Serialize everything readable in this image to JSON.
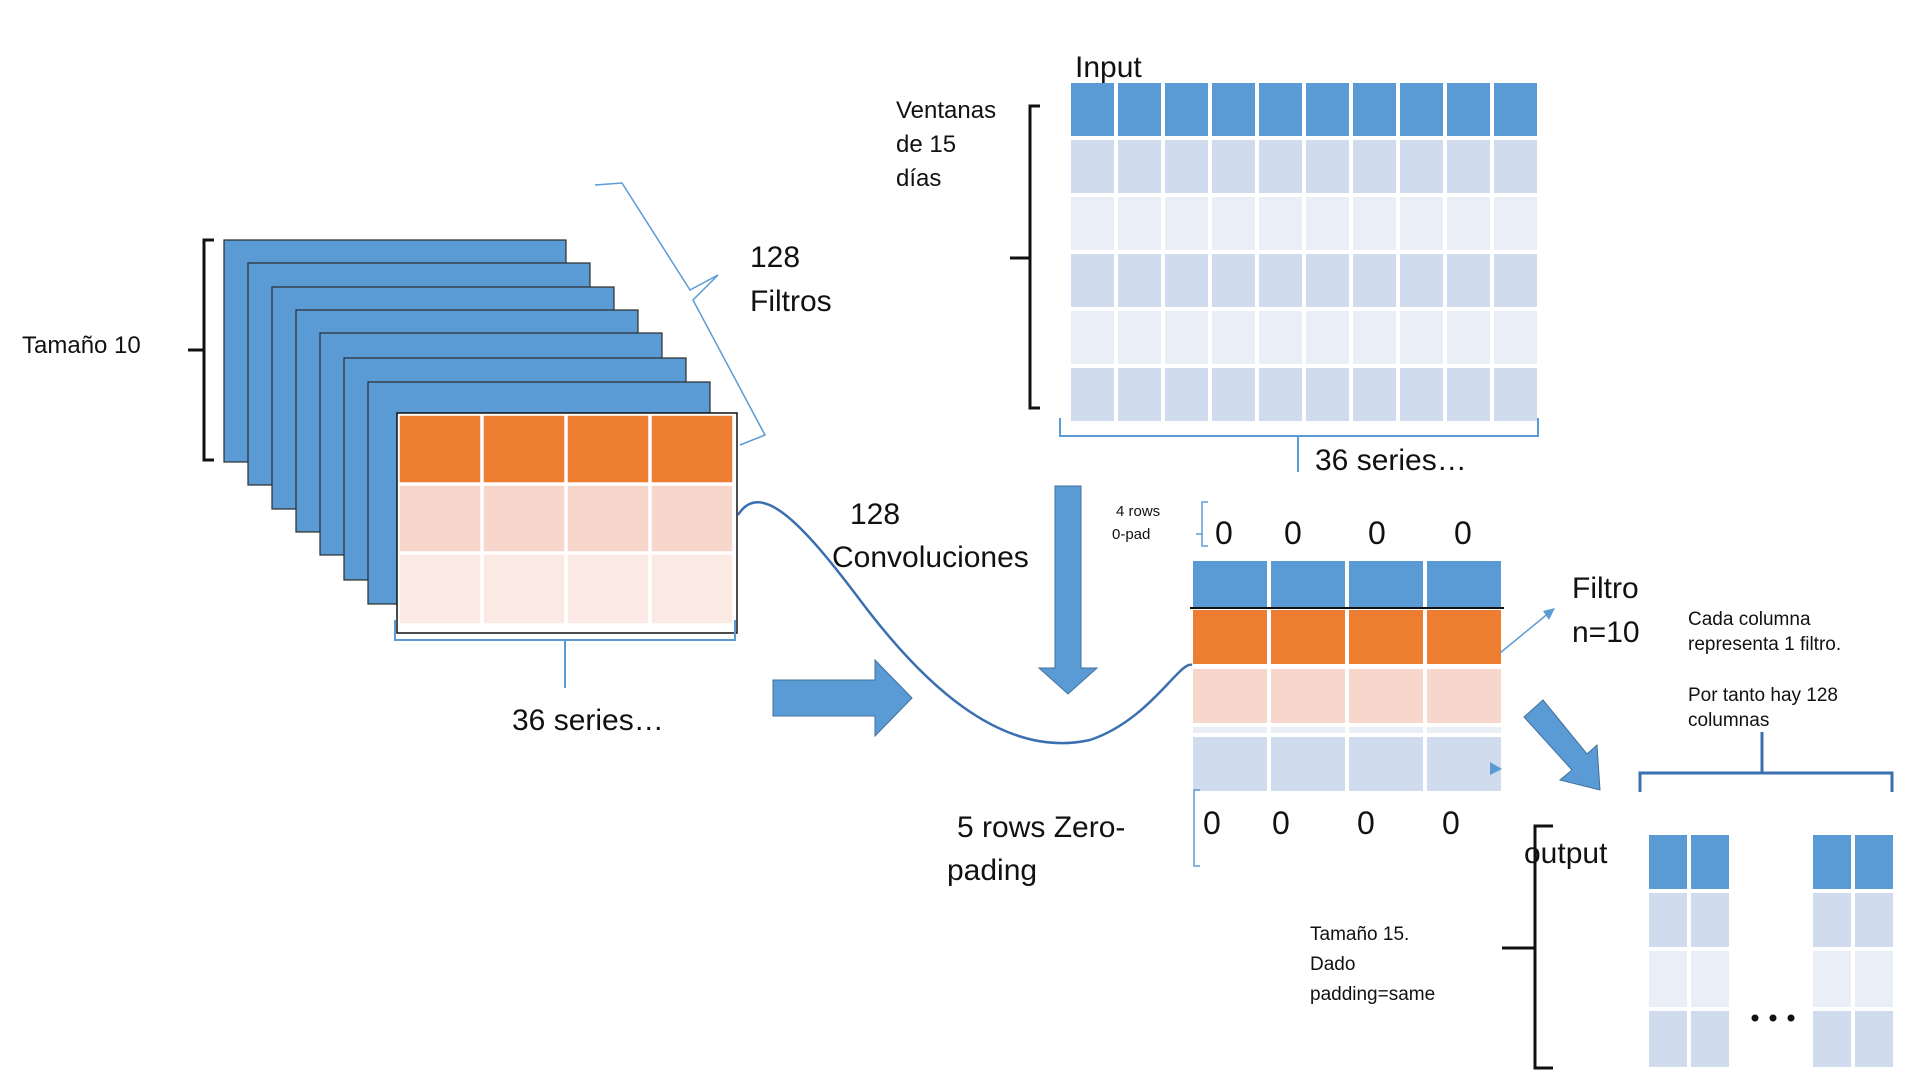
{
  "colors": {
    "blue": "#5b9bd5",
    "orange": "#ed7d31",
    "light_blue_1": "#d0dcee",
    "light_blue_2": "#e9eef7",
    "light_orange_1": "#f7d7cb",
    "light_orange_2": "#fbeae4",
    "brace": "#111111",
    "blue_line": "#3a6fb0"
  },
  "labels": {
    "tamano10": "Tamaño 10",
    "filtros_count": "128",
    "filtros": "Filtros",
    "series_left": "36 series…",
    "input_title": "Input",
    "ventanas_1": "Ventanas",
    "ventanas_2": "de 15",
    "ventanas_3": "días",
    "series_top": "36 series…",
    "conv_count": "128",
    "convoluciones": "Convoluciones",
    "rows_pad_1": "4  rows",
    "rows_pad_2": "0-pad",
    "filtro": "Filtro",
    "filtro_n": "n=10",
    "cada_1": "Cada columna",
    "cada_2": "representa 1 filtro.",
    "portanto_1": "Por tanto hay 128",
    "portanto_2": "columnas",
    "zero_pad_1": "5 rows Zero-",
    "zero_pad_2": "pading",
    "output": "output",
    "tamano15_1": "Tamaño 15.",
    "tamano15_2": "Dado",
    "tamano15_3": "padding=same",
    "ellipsis": "…",
    "zero_value": "0"
  }
}
